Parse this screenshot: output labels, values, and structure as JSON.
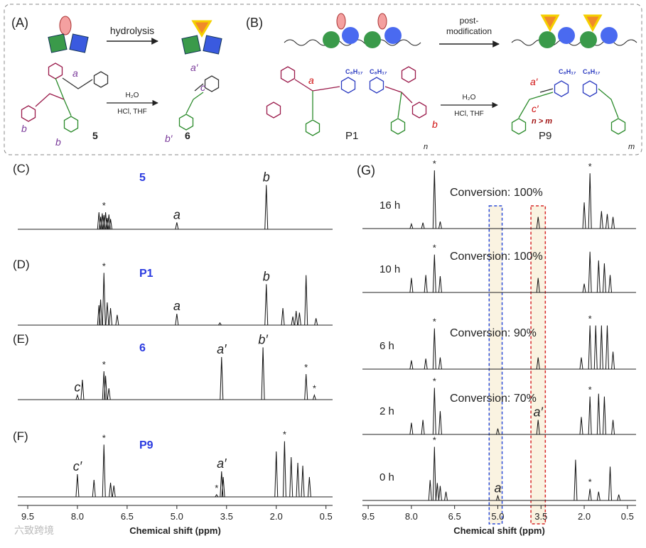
{
  "scheme_a": {
    "label": "(A)",
    "arrow_text": "hydrolysis",
    "reagent_top": "H₂O",
    "reagent_bottom": "HCl, THF",
    "reactant": "5",
    "product": "6",
    "reactant_labels": [
      "a",
      "b",
      "b"
    ],
    "product_labels": [
      "a′",
      "c",
      "b′"
    ]
  },
  "scheme_b": {
    "label": "(B)",
    "arrow_text": [
      "post-",
      "modification"
    ],
    "reagent_top": "H₂O",
    "reagent_bottom": "HCl, THF",
    "reactant": "P1",
    "product": "P9",
    "condition": "n > m",
    "substituent": "C₈H₁₇",
    "reactant_labels": [
      "a",
      "b",
      "n"
    ],
    "product_labels": [
      "a′",
      "c′",
      "m"
    ]
  },
  "watermark": "六致跨境",
  "chart_data": [
    {
      "type": "spectrum",
      "xlabel": "Chemical shift (ppm)",
      "xlim": [
        9.8,
        0.3
      ],
      "xticks": [
        9.5,
        {
          "value": 8,
          "label": "8.0"
        },
        6.5,
        {
          "value": 5,
          "label": "5.0"
        },
        3.5,
        {
          "value": 2,
          "label": "2.0"
        },
        0.5
      ],
      "spectra": [
        {
          "name": "(C)",
          "compound": "5",
          "x": [
            7.35,
            7.3,
            7.25,
            7.2,
            7.15,
            7.1,
            7.05,
            7.0,
            5.0,
            2.3
          ],
          "values": [
            30,
            22,
            28,
            25,
            30,
            20,
            26,
            18,
            12,
            78
          ],
          "annotations": [
            {
              "text": "*",
              "x": 7.2
            },
            {
              "text": "a",
              "x": 5.0
            },
            {
              "text": "b",
              "x": 2.3
            }
          ]
        },
        {
          "name": "(D)",
          "compound": "P1",
          "x": [
            7.35,
            7.3,
            7.2,
            7.1,
            7.0,
            6.8,
            5.0,
            3.7,
            2.3,
            1.8,
            1.5,
            1.4,
            1.3,
            1.1,
            0.8
          ],
          "values": [
            35,
            45,
            92,
            40,
            30,
            18,
            20,
            4,
            72,
            30,
            15,
            25,
            22,
            88,
            12
          ],
          "annotations": [
            {
              "text": "*",
              "x": 7.2
            },
            {
              "text": "a",
              "x": 5.0
            },
            {
              "text": "b",
              "x": 2.3
            }
          ]
        },
        {
          "name": "(E)",
          "compound": "6",
          "x": [
            8.0,
            7.85,
            7.2,
            7.15,
            7.05,
            3.65,
            2.4,
            1.1,
            0.85
          ],
          "values": [
            8,
            35,
            50,
            42,
            20,
            75,
            92,
            45,
            8
          ],
          "annotations": [
            {
              "text": "c",
              "x": 8.0
            },
            {
              "text": "*",
              "x": 7.2
            },
            {
              "text": "a′",
              "x": 3.65
            },
            {
              "text": "b′",
              "x": 2.4
            },
            {
              "text": "*",
              "x": 1.1
            },
            {
              "text": "*",
              "x": 0.85
            }
          ]
        },
        {
          "name": "(F)",
          "compound": "P9",
          "x": [
            8.0,
            7.5,
            7.2,
            7.0,
            6.9,
            3.8,
            3.65,
            3.6,
            2.0,
            1.75,
            1.55,
            1.35,
            1.2,
            1.0
          ],
          "values": [
            40,
            30,
            92,
            25,
            20,
            4,
            45,
            35,
            80,
            98,
            70,
            60,
            55,
            35
          ],
          "annotations": [
            {
              "text": "c′",
              "x": 8.0
            },
            {
              "text": "*",
              "x": 7.2
            },
            {
              "text": "*",
              "x": 3.8
            },
            {
              "text": "a′",
              "x": 3.65
            },
            {
              "text": "*",
              "x": 1.75
            }
          ]
        }
      ]
    },
    {
      "type": "spectrum",
      "name": "(G)",
      "xlabel": "Chemical shift (ppm)",
      "xlim": [
        9.7,
        0.2
      ],
      "xticks": [
        9.5,
        {
          "value": 8,
          "label": "8.0"
        },
        6.5,
        {
          "value": 5,
          "label": "5.0"
        },
        3.5,
        {
          "value": 2,
          "label": "2.0"
        },
        0.5
      ],
      "highlights": [
        {
          "from": 5.3,
          "to": 4.85,
          "color": "#2a4bd7"
        },
        {
          "from": 3.85,
          "to": 3.35,
          "color": "#d62728"
        }
      ],
      "spectra": [
        {
          "name": "16 h",
          "conversion": "Conversion: 100%",
          "x": [
            8.0,
            7.6,
            7.2,
            7.0,
            3.6,
            2.0,
            1.8,
            1.4,
            1.2,
            1.0
          ],
          "values": [
            8,
            10,
            100,
            12,
            20,
            45,
            95,
            30,
            25,
            20
          ],
          "annotations": [
            {
              "text": "*",
              "x": 7.2
            },
            {
              "text": "*",
              "x": 1.8
            }
          ]
        },
        {
          "name": "10 h",
          "conversion": "Conversion: 100%",
          "x": [
            8.0,
            7.5,
            7.2,
            7.0,
            3.6,
            2.0,
            1.8,
            1.5,
            1.3,
            1.1
          ],
          "values": [
            25,
            30,
            65,
            28,
            25,
            15,
            70,
            55,
            50,
            30
          ],
          "annotations": [
            {
              "text": "*",
              "x": 7.2
            }
          ]
        },
        {
          "name": "6 h",
          "conversion": "Conversion: 90%",
          "x": [
            8.0,
            7.5,
            7.2,
            7.0,
            3.6,
            2.1,
            1.8,
            1.6,
            1.4,
            1.2,
            1.0
          ],
          "values": [
            15,
            18,
            70,
            20,
            20,
            20,
            75,
            75,
            75,
            75,
            30
          ],
          "annotations": [
            {
              "text": "*",
              "x": 7.2
            },
            {
              "text": "*",
              "x": 1.8
            }
          ]
        },
        {
          "name": "2 h",
          "conversion": "Conversion: 70%",
          "x": [
            8.0,
            7.6,
            7.2,
            7.0,
            5.0,
            3.6,
            2.1,
            1.8,
            1.5,
            1.3,
            1.0
          ],
          "values": [
            20,
            25,
            80,
            40,
            10,
            25,
            30,
            65,
            70,
            65,
            25
          ],
          "annotations": [
            {
              "text": "*",
              "x": 7.2
            },
            {
              "text": "a′",
              "x": 3.6
            },
            {
              "text": "*",
              "x": 1.8
            }
          ]
        },
        {
          "name": "0 h",
          "x": [
            7.35,
            7.2,
            7.1,
            7.0,
            6.8,
            5.0,
            2.3,
            1.8,
            1.5,
            1.1,
            0.8
          ],
          "values": [
            35,
            92,
            30,
            25,
            15,
            8,
            70,
            20,
            15,
            58,
            10
          ],
          "annotations": [
            {
              "text": "*",
              "x": 7.2
            },
            {
              "text": "a",
              "x": 5.0
            },
            {
              "text": "*",
              "x": 1.8
            }
          ]
        }
      ]
    }
  ]
}
